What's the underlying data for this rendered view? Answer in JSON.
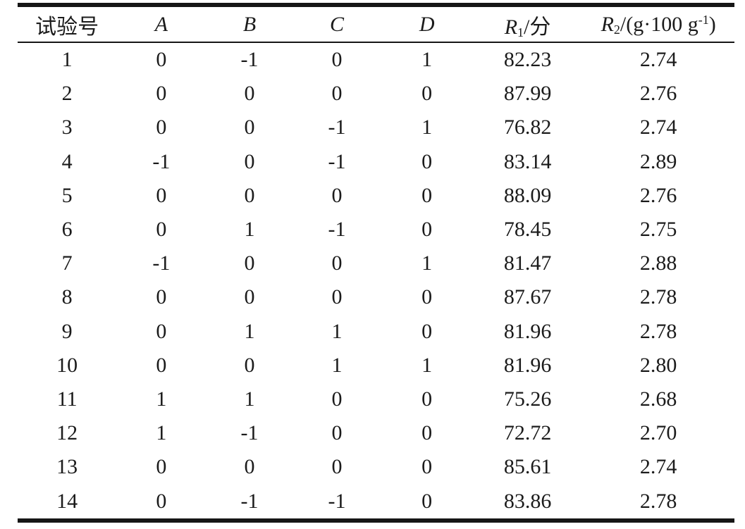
{
  "table": {
    "headers": {
      "trial": "试验号",
      "factor_a": "A",
      "factor_b": "B",
      "factor_c": "C",
      "factor_d": "D",
      "r1": {
        "base": "R",
        "sub": "1",
        "suffix": "/分"
      },
      "r2": {
        "base": "R",
        "sub": "2",
        "mid": "/(g·100 g",
        "sup": "-1",
        "end": ")"
      }
    },
    "rows": [
      [
        "1",
        "0",
        "-1",
        "0",
        "1",
        "82.23",
        "2.74"
      ],
      [
        "2",
        "0",
        "0",
        "0",
        "0",
        "87.99",
        "2.76"
      ],
      [
        "3",
        "0",
        "0",
        "-1",
        "1",
        "76.82",
        "2.74"
      ],
      [
        "4",
        "-1",
        "0",
        "-1",
        "0",
        "83.14",
        "2.89"
      ],
      [
        "5",
        "0",
        "0",
        "0",
        "0",
        "88.09",
        "2.76"
      ],
      [
        "6",
        "0",
        "1",
        "-1",
        "0",
        "78.45",
        "2.75"
      ],
      [
        "7",
        "-1",
        "0",
        "0",
        "1",
        "81.47",
        "2.88"
      ],
      [
        "8",
        "0",
        "0",
        "0",
        "0",
        "87.67",
        "2.78"
      ],
      [
        "9",
        "0",
        "1",
        "1",
        "0",
        "81.96",
        "2.78"
      ],
      [
        "10",
        "0",
        "0",
        "1",
        "1",
        "81.96",
        "2.80"
      ],
      [
        "11",
        "1",
        "1",
        "0",
        "0",
        "75.26",
        "2.68"
      ],
      [
        "12",
        "1",
        "-1",
        "0",
        "0",
        "72.72",
        "2.70"
      ],
      [
        "13",
        "0",
        "0",
        "0",
        "0",
        "85.61",
        "2.74"
      ],
      [
        "14",
        "0",
        "-1",
        "-1",
        "0",
        "83.86",
        "2.78"
      ]
    ]
  }
}
